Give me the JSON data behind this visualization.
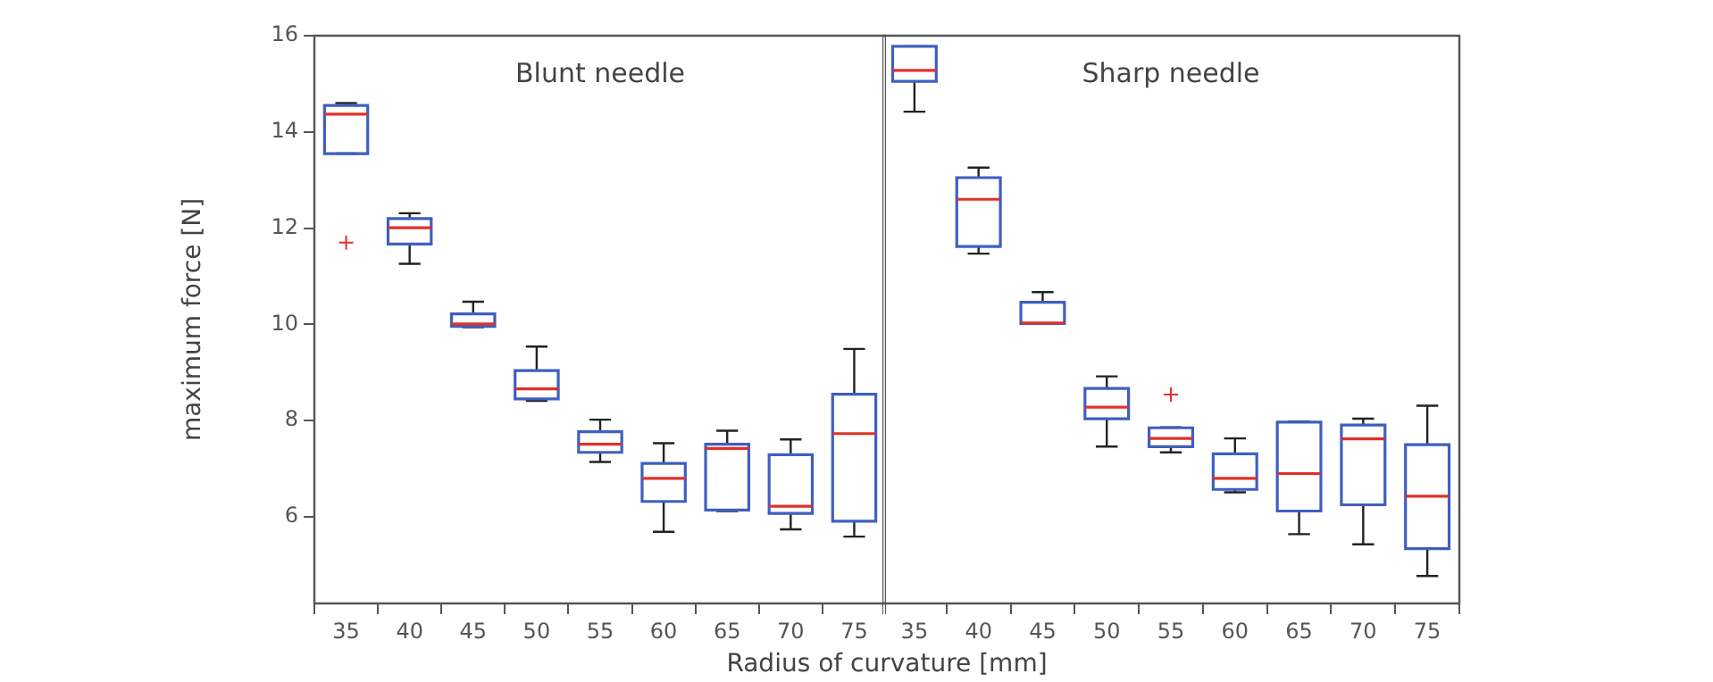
{
  "chart_data": [
    {
      "type": "box",
      "title": "Blunt needle",
      "xlabel": "Radius of curvature [mm]",
      "ylabel": "maximum force [N]",
      "categories": [
        "35",
        "40",
        "45",
        "50",
        "55",
        "60",
        "65",
        "70",
        "75"
      ],
      "ylim": [
        4.2,
        16
      ],
      "yticks": [
        6,
        8,
        10,
        12,
        14,
        16
      ],
      "grid": false,
      "legend": false,
      "series": [
        {
          "color": "#3f5fbf",
          "boxes": [
            {
              "low": 13.55,
              "q1": 13.55,
              "median": 14.37,
              "q3": 14.55,
              "high": 14.6,
              "outliers": [
                11.7
              ]
            },
            {
              "low": 11.26,
              "q1": 11.67,
              "median": 12.01,
              "q3": 12.2,
              "high": 12.31
            },
            {
              "low": 9.94,
              "q1": 9.96,
              "median": 10.01,
              "q3": 10.22,
              "high": 10.47
            },
            {
              "low": 8.41,
              "q1": 8.45,
              "median": 8.66,
              "q3": 9.04,
              "high": 9.54
            },
            {
              "low": 7.14,
              "q1": 7.34,
              "median": 7.51,
              "q3": 7.77,
              "high": 8.02
            },
            {
              "low": 5.69,
              "q1": 6.32,
              "median": 6.8,
              "q3": 7.11,
              "high": 7.53
            },
            {
              "low": 6.12,
              "q1": 6.14,
              "median": 7.42,
              "q3": 7.51,
              "high": 7.79
            },
            {
              "low": 5.74,
              "q1": 6.07,
              "median": 6.22,
              "q3": 7.29,
              "high": 7.61
            },
            {
              "low": 5.59,
              "q1": 5.91,
              "median": 7.73,
              "q3": 8.55,
              "high": 9.49
            }
          ]
        }
      ]
    },
    {
      "type": "box",
      "title": "Sharp needle",
      "categories": [
        "35",
        "40",
        "45",
        "50",
        "55",
        "60",
        "65",
        "70",
        "75"
      ],
      "ylim": [
        4.2,
        16
      ],
      "yticks": [
        6,
        8,
        10,
        12,
        14,
        16
      ],
      "tick_labels": "x",
      "grid": false,
      "legend": false,
      "series": [
        {
          "color": "#3f5fbf",
          "boxes": [
            {
              "low": 14.42,
              "q1": 15.05,
              "median": 15.28,
              "q3": 15.78,
              "high": 15.78
            },
            {
              "low": 11.47,
              "q1": 11.62,
              "median": 12.6,
              "q3": 13.05,
              "high": 13.26
            },
            {
              "low": 10.02,
              "q1": 10.02,
              "median": 10.03,
              "q3": 10.46,
              "high": 10.67
            },
            {
              "low": 7.46,
              "q1": 8.04,
              "median": 8.28,
              "q3": 8.67,
              "high": 8.92
            },
            {
              "low": 7.34,
              "q1": 7.46,
              "median": 7.63,
              "q3": 7.85,
              "high": 7.86,
              "outliers": [
                8.54
              ]
            },
            {
              "low": 6.51,
              "q1": 6.57,
              "median": 6.8,
              "q3": 7.31,
              "high": 7.63
            },
            {
              "low": 5.64,
              "q1": 6.12,
              "median": 6.9,
              "q3": 7.97,
              "high": 7.98
            },
            {
              "low": 5.43,
              "q1": 6.25,
              "median": 7.62,
              "q3": 7.91,
              "high": 8.04
            },
            {
              "low": 4.77,
              "q1": 5.34,
              "median": 6.43,
              "q3": 7.5,
              "high": 8.31
            }
          ]
        }
      ]
    }
  ]
}
